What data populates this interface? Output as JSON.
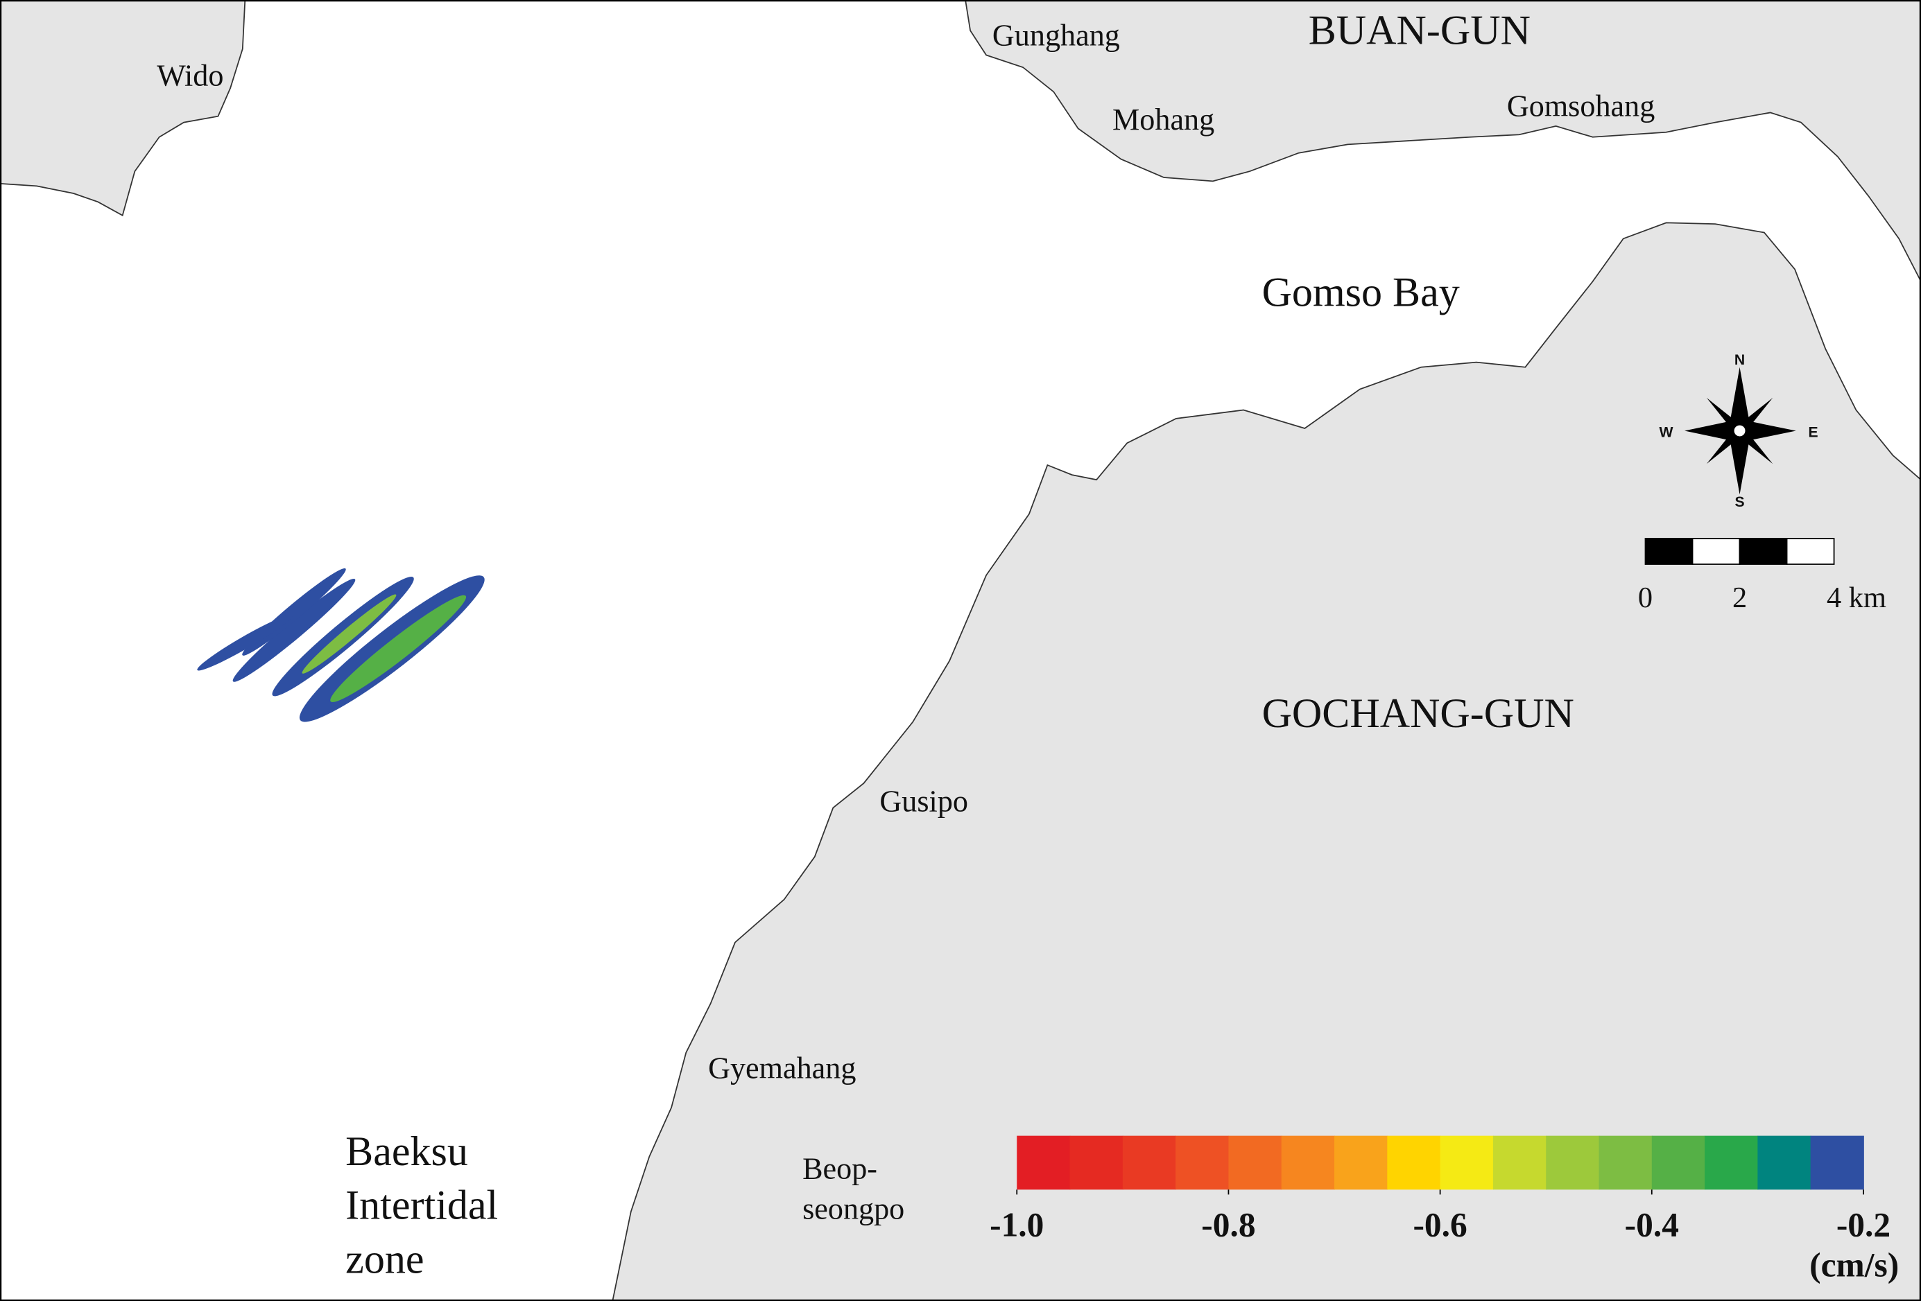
{
  "map": {
    "places": {
      "wido": "Wido",
      "gunghang": "Gunghang",
      "buan": "BUAN-GUN",
      "mohang": "Mohang",
      "gomsohang": "Gomsohang",
      "gomso_bay": "Gomso Bay",
      "gochang": "GOCHANG-GUN",
      "gusipo": "Gusipo",
      "gyemahang": "Gyemahang",
      "beopseongpo": [
        "Beop-",
        "seongpo"
      ],
      "baeksu": [
        "Baeksu",
        "Intertidal",
        "zone"
      ]
    },
    "compass": {
      "n": "N",
      "s": "S",
      "e": "E",
      "w": "W"
    },
    "scale_bar": {
      "ticks": [
        0,
        2,
        4
      ],
      "unit": "km"
    },
    "colorbar": {
      "colors": [
        "#e31e24",
        "#e52a22",
        "#e93a23",
        "#ee5124",
        "#f26a22",
        "#f6861f",
        "#f9a31b",
        "#ffd400",
        "#f5ea14",
        "#c6d92e",
        "#9dc93b",
        "#7dbd43",
        "#55b046",
        "#29a84a",
        "#00847f",
        "#2e4fa2"
      ],
      "lim": [
        -1.0,
        -0.2
      ],
      "ticks": [
        {
          "value": -1.0,
          "label": "-1.0"
        },
        -0.8,
        -0.6,
        -0.4,
        -0.2
      ],
      "unit": "(cm/s)"
    }
  }
}
